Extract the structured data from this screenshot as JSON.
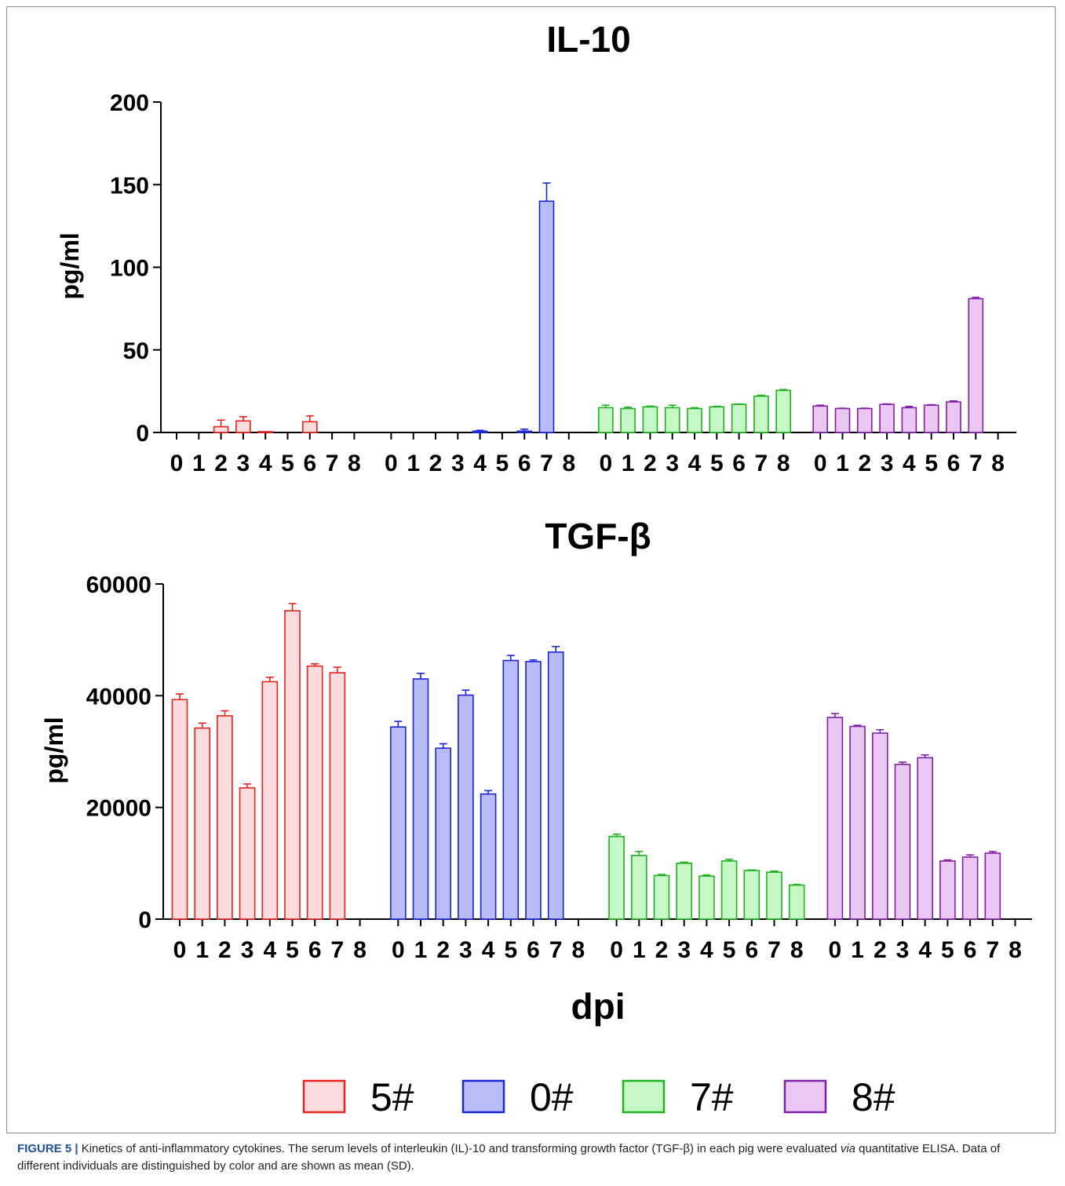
{
  "chart_data": [
    {
      "type": "bar",
      "title": "IL-10",
      "ylabel": "pg/ml",
      "xlabel": "",
      "ylim": [
        0,
        200
      ],
      "yticks": [
        0,
        50,
        100,
        150,
        200
      ],
      "categories": [
        "0",
        "1",
        "2",
        "3",
        "4",
        "5",
        "6",
        "7",
        "8"
      ],
      "series": [
        {
          "name": "5#",
          "color": "#e8221e",
          "fill": "#fcdcdc",
          "values": [
            0,
            0,
            3.5,
            7,
            0.5,
            0,
            6.5,
            0,
            0
          ],
          "errors": [
            0,
            0,
            4,
            2.5,
            0,
            0,
            3.5,
            0,
            0
          ]
        },
        {
          "name": "0#",
          "color": "#1a24d8",
          "fill": "#babcf8",
          "values": [
            0,
            0,
            0,
            0,
            0.8,
            0,
            0.8,
            140,
            0
          ],
          "errors": [
            0,
            0,
            0,
            0,
            0.5,
            0,
            1.2,
            11,
            0
          ]
        },
        {
          "name": "7#",
          "color": "#1fb21f",
          "fill": "#c6f7c6",
          "values": [
            15,
            14.5,
            15.5,
            15,
            14.5,
            15.5,
            17,
            22,
            25.5
          ],
          "errors": [
            1.5,
            0.8,
            0.4,
            1.5,
            0.5,
            0.3,
            0.2,
            0.5,
            0.5
          ]
        },
        {
          "name": "8#",
          "color": "#8020a8",
          "fill": "#ebc8f3",
          "values": [
            16,
            14.5,
            14.5,
            17,
            15,
            16.5,
            18.5,
            81,
            0
          ],
          "errors": [
            0.5,
            0.2,
            0.2,
            0.3,
            0.8,
            0.3,
            0.6,
            0.8,
            0
          ]
        }
      ]
    },
    {
      "type": "bar",
      "title": "TGF-β",
      "ylabel": "pg/ml",
      "xlabel": "dpi",
      "ylim": [
        0,
        60000
      ],
      "yticks": [
        0,
        20000,
        40000,
        60000
      ],
      "categories": [
        "0",
        "1",
        "2",
        "3",
        "4",
        "5",
        "6",
        "7",
        "8"
      ],
      "series": [
        {
          "name": "5#",
          "color": "#e8221e",
          "fill": "#fcdcdc",
          "values": [
            39300,
            34200,
            36400,
            23500,
            42500,
            55200,
            45300,
            44100,
            0
          ],
          "errors": [
            1000,
            900,
            900,
            700,
            800,
            1300,
            400,
            1000,
            0
          ]
        },
        {
          "name": "0#",
          "color": "#1a24d8",
          "fill": "#babcf8",
          "values": [
            34400,
            43000,
            30600,
            40100,
            22400,
            46300,
            46100,
            47800,
            0
          ],
          "errors": [
            1000,
            1000,
            800,
            900,
            600,
            900,
            300,
            1000,
            0
          ]
        },
        {
          "name": "7#",
          "color": "#1fb21f",
          "fill": "#c6f7c6",
          "values": [
            14800,
            11400,
            7800,
            10000,
            7700,
            10400,
            8700,
            8400,
            6100
          ],
          "errors": [
            400,
            700,
            200,
            200,
            200,
            300,
            100,
            200,
            100
          ]
        },
        {
          "name": "8#",
          "color": "#8020a8",
          "fill": "#ebc8f3",
          "values": [
            36100,
            34500,
            33300,
            27700,
            28900,
            10400,
            11100,
            11800,
            0
          ],
          "errors": [
            700,
            200,
            600,
            400,
            500,
            200,
            400,
            300,
            0
          ]
        }
      ]
    }
  ],
  "legend": [
    {
      "name": "5#",
      "color": "#e8221e",
      "fill": "#fcdcdc"
    },
    {
      "name": "0#",
      "color": "#1a24d8",
      "fill": "#babcf8"
    },
    {
      "name": "7#",
      "color": "#1fb21f",
      "fill": "#c6f7c6"
    },
    {
      "name": "8#",
      "color": "#8020a8",
      "fill": "#ebc8f3"
    }
  ],
  "caption": {
    "label": "FIGURE 5 |",
    "text_before_italic": " Kinetics of anti-inflammatory cytokines. The serum levels of interleukin (IL)-10 and transforming growth factor (TGF-β) in each pig were evaluated ",
    "italic": "via",
    "text_after_italic": " quantitative ELISA. Data of different individuals are distinguished by color and are shown as mean (SD)."
  }
}
